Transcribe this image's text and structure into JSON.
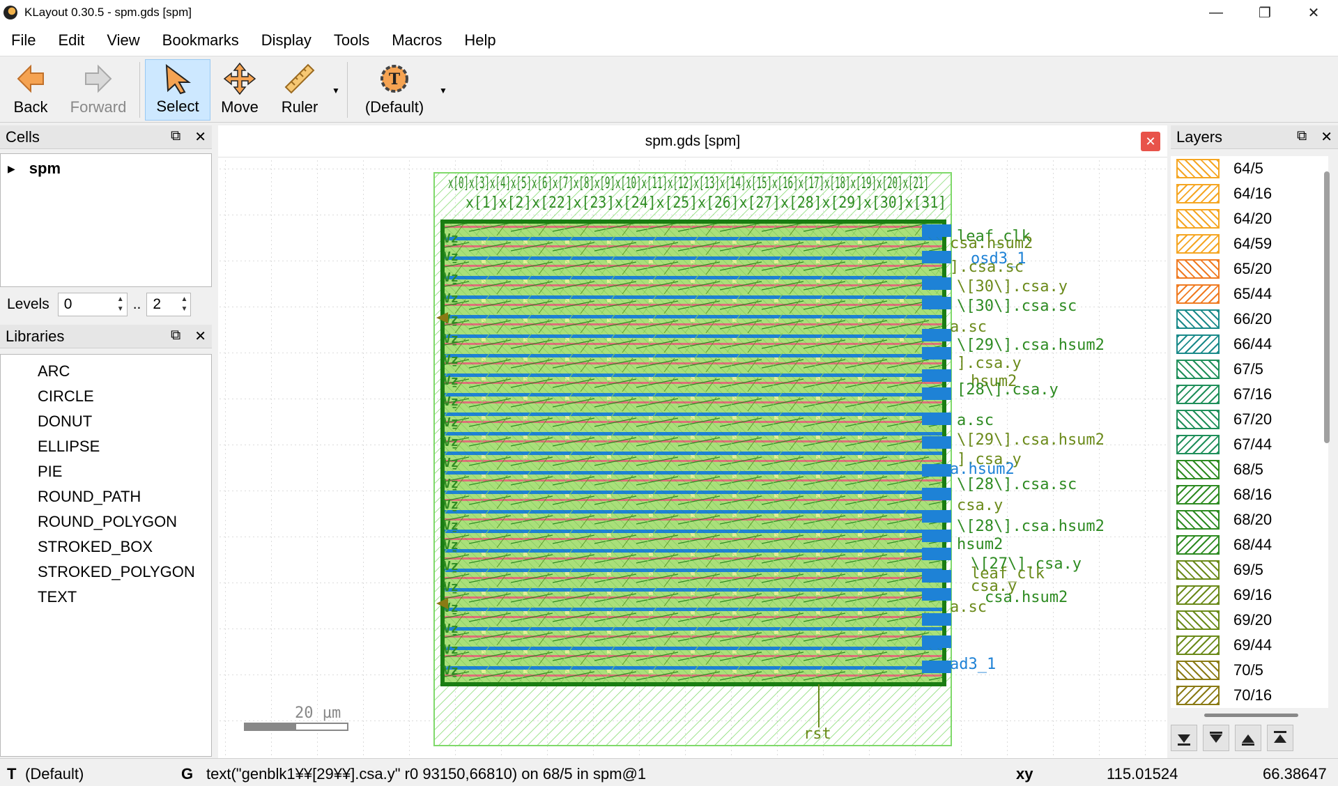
{
  "window": {
    "title": "KLayout 0.30.5 - spm.gds [spm]"
  },
  "menu": [
    "File",
    "Edit",
    "View",
    "Bookmarks",
    "Display",
    "Tools",
    "Macros",
    "Help"
  ],
  "toolbar": {
    "back": "Back",
    "forward": "Forward",
    "select": "Select",
    "move": "Move",
    "ruler": "Ruler",
    "default": "(Default)"
  },
  "cells": {
    "title": "Cells",
    "tree": [
      "spm"
    ]
  },
  "levels": {
    "label": "Levels",
    "from": "0",
    "sep": "..",
    "to": "2"
  },
  "libraries": {
    "title": "Libraries",
    "items": [
      "ARC",
      "CIRCLE",
      "DONUT",
      "ELLIPSE",
      "PIE",
      "ROUND_PATH",
      "ROUND_POLYGON",
      "STROKED_BOX",
      "STROKED_POLYGON",
      "TEXT"
    ]
  },
  "canvas": {
    "tab_title": "spm.gds [spm]",
    "scale_label": "20 µm",
    "labels": {
      "top1": "x[0]x[3]x[4]x[5]x[6]x[7]x[8]x[9]x[10]x[11]x[12]x[13]x[14]x[15]x[16]x[17]x[18]x[19]x[20]x[21]",
      "top2": "x[1]x[2]x[22]x[23]x[24]x[25]x[26]x[27]x[28]x[29]x[30]x[31]",
      "r1": "leaf_clk",
      "r2": "csa.hsum2",
      "r3": "osd3_1",
      "r4": "].csa.sc",
      "r5": "\\[30\\].csa.y",
      "r6": "\\[30\\].csa.sc",
      "r7": "a.sc",
      "r8": "\\[29\\].csa.hsum2",
      "r9": "].csa.y",
      "r10": "hsum2",
      "r11": "[28\\].csa.y",
      "r12": "a.sc",
      "r13": "\\[29\\].csa.hsum2",
      "r14": "].csa.y",
      "r15": "a.hsum2",
      "r16": "\\[28\\].csa.sc",
      "r17": "csa.y",
      "r18": "\\[28\\].csa.hsum2",
      "r19": "hsum2",
      "r20": "\\[27\\].csa.y",
      "r21": "leaf_clk",
      "r22": "csa.y",
      "r23": "csa.hsum2",
      "r24": "a.sc",
      "r25": "ad3_1",
      "bottom": "rst"
    }
  },
  "layers": {
    "title": "Layers",
    "items": [
      {
        "name": "64/5",
        "color": "#f5a623"
      },
      {
        "name": "64/16",
        "color": "#f5a623"
      },
      {
        "name": "64/20",
        "color": "#f5a623"
      },
      {
        "name": "64/59",
        "color": "#f5a623"
      },
      {
        "name": "65/20",
        "color": "#f07b22"
      },
      {
        "name": "65/44",
        "color": "#f07b22"
      },
      {
        "name": "66/20",
        "color": "#1a8a8a"
      },
      {
        "name": "66/44",
        "color": "#1a8a8a"
      },
      {
        "name": "67/5",
        "color": "#1f8f5a"
      },
      {
        "name": "67/16",
        "color": "#1f8f5a"
      },
      {
        "name": "67/20",
        "color": "#1f8f5a"
      },
      {
        "name": "67/44",
        "color": "#1f8f5a"
      },
      {
        "name": "68/5",
        "color": "#2e8b22"
      },
      {
        "name": "68/16",
        "color": "#2e8b22"
      },
      {
        "name": "68/20",
        "color": "#2e8b22"
      },
      {
        "name": "68/44",
        "color": "#2e8b22"
      },
      {
        "name": "69/5",
        "color": "#6b8a1a"
      },
      {
        "name": "69/16",
        "color": "#6b8a1a"
      },
      {
        "name": "69/20",
        "color": "#6b8a1a"
      },
      {
        "name": "69/44",
        "color": "#6b8a1a"
      },
      {
        "name": "70/5",
        "color": "#8a7a14"
      },
      {
        "name": "70/16",
        "color": "#8a7a14"
      }
    ]
  },
  "status": {
    "mode_key": "T",
    "mode": "(Default)",
    "g": "G",
    "message": "text(\"genblk1¥¥[29¥¥].csa.y\" r0 93150,66810) on 68/5 in spm@1",
    "xy_label": "xy",
    "x": "115.01524",
    "y": "66.38647"
  }
}
